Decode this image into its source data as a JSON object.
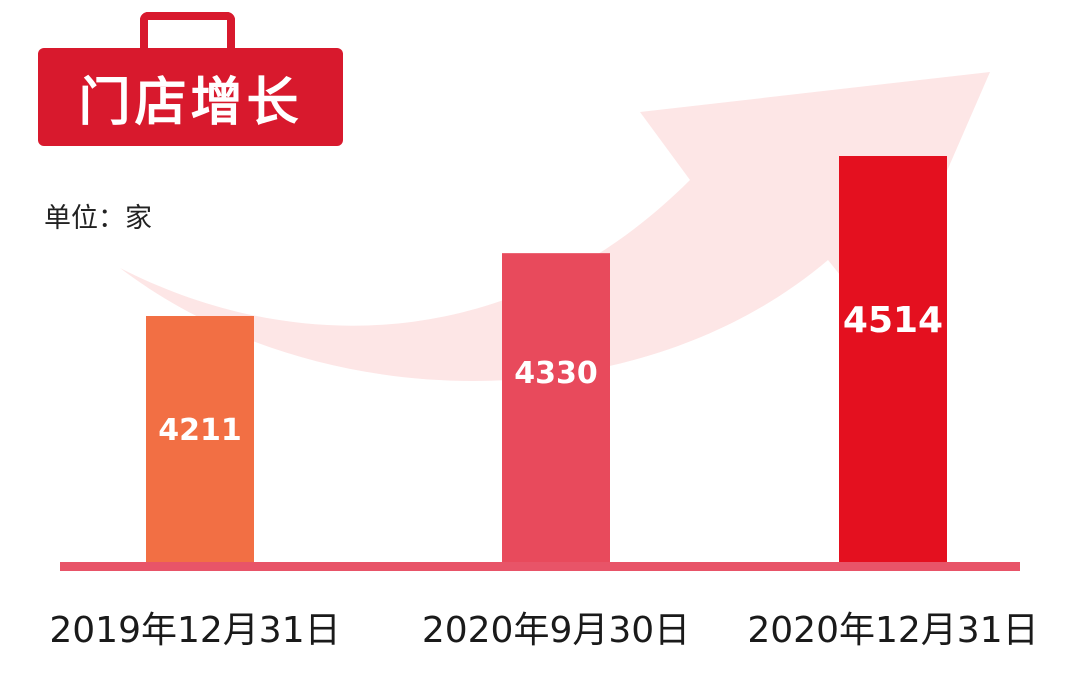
{
  "chart_data": {
    "type": "bar",
    "title": "门店增长",
    "unit_label": "单位：家",
    "categories": [
      "2019年12月31日",
      "2020年9月30日",
      "2020年12月31日"
    ],
    "values": [
      4211,
      4330,
      4514
    ],
    "value_labels": [
      "4211",
      "4330",
      "4514"
    ],
    "bar_colors": [
      "#f26f44",
      "#e84a5c",
      "#e4101f"
    ],
    "baseline_color": "#e85468",
    "arrow_color": "#fde6e6",
    "title_color": "#d8192d",
    "legend": "none",
    "grid": false
  }
}
